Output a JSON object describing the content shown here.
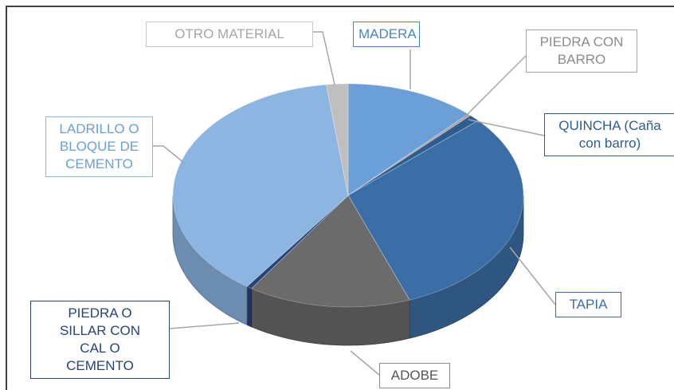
{
  "chart_data": {
    "type": "pie3d",
    "categories": [
      "MADERA",
      "PIEDRA CON BARRO",
      "QUINCHA (Caña con barro)",
      "TAPIA",
      "ADOBE",
      "PIEDRA O SILLAR CON CAL O CEMENTO",
      "LADRILLO O BLOQUE DE CEMENTO",
      "OTRO MATERIAL"
    ],
    "values": [
      12,
      0.3,
      1,
      31,
      15,
      0.5,
      38.2,
      2
    ],
    "colors": [
      "#6a9fd8",
      "#a5a5a5",
      "#2e5c8f",
      "#3b6ea6",
      "#6b6b6b",
      "#264478",
      "#8cb5e1",
      "#bfbfbf"
    ]
  }
}
